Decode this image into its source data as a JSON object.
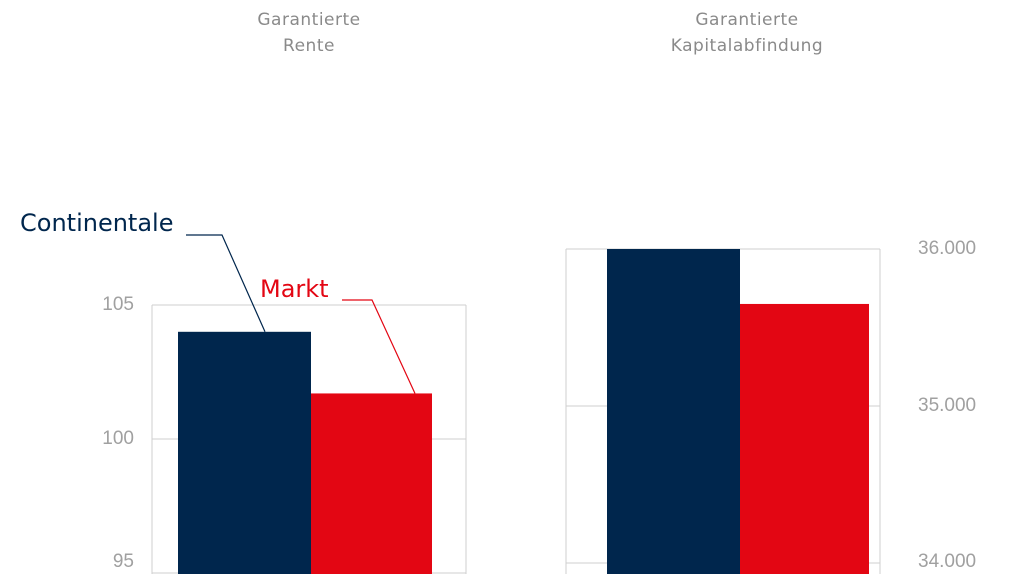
{
  "chart_data": [
    {
      "type": "bar",
      "title": [
        "Garantierte",
        "Rente"
      ],
      "series": [
        {
          "name": "Continentale",
          "color": "#00264d",
          "values": [
            104.0
          ]
        },
        {
          "name": "Markt",
          "color": "#e30613",
          "values": [
            101.7
          ]
        }
      ],
      "ylim": [
        95,
        105
      ],
      "yticks": [
        95,
        100,
        105
      ],
      "grid": true,
      "axis_side": "left",
      "legend": true
    },
    {
      "type": "bar",
      "title": [
        "Garantierte",
        "Kapitalabfindung"
      ],
      "series": [
        {
          "color": "#00264d",
          "values": [
            36000
          ]
        },
        {
          "color": "#e30613",
          "values": [
            35650
          ]
        }
      ],
      "ylim": [
        34000,
        36000
      ],
      "yticks": [
        {
          "value": 34000,
          "label": "34.000"
        },
        {
          "value": 35000,
          "label": "35.000"
        },
        {
          "value": 36000,
          "label": "36.000"
        }
      ],
      "grid": true,
      "axis_side": "right",
      "legend": false
    }
  ]
}
